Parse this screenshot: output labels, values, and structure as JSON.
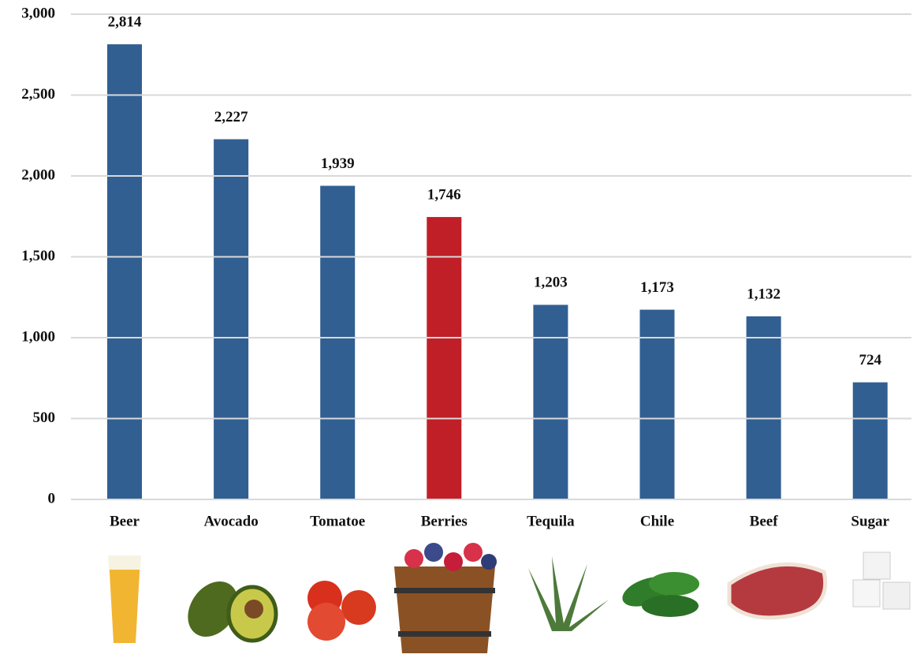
{
  "chart_data": {
    "type": "bar",
    "categories": [
      "Beer",
      "Avocado",
      "Tomatoe",
      "Berries",
      "Tequila",
      "Chile",
      "Beef",
      "Sugar"
    ],
    "values": [
      2814,
      2227,
      1939,
      1746,
      1203,
      1173,
      1132,
      724
    ],
    "value_labels": [
      "2,814",
      "2,227",
      "1,939",
      "1,746",
      "1,203",
      "1,173",
      "1,132",
      "724"
    ],
    "colors": [
      "#315f92",
      "#315f92",
      "#315f92",
      "#c01f27",
      "#315f92",
      "#315f92",
      "#315f92",
      "#315f92"
    ],
    "ylim": [
      0,
      3000
    ],
    "yticks": [
      0,
      500,
      {
        "value": 1000,
        "label": "1,000"
      },
      {
        "value": 1500,
        "label": "1,500"
      },
      {
        "value": 2000,
        "label": "2,000"
      },
      {
        "value": 2500,
        "label": "2,500"
      },
      {
        "value": 3000,
        "label": "3,000"
      }
    ],
    "grid": true
  }
}
